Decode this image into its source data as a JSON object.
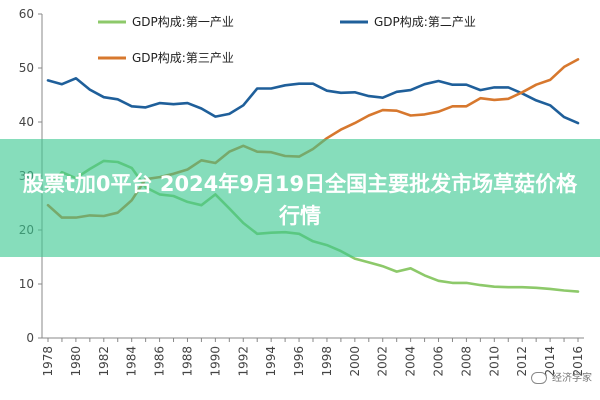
{
  "chart_data": {
    "type": "line",
    "title": "",
    "xlabel": "",
    "ylabel": "",
    "x": [
      1978,
      1979,
      1980,
      1981,
      1982,
      1983,
      1984,
      1985,
      1986,
      1987,
      1988,
      1989,
      1990,
      1991,
      1992,
      1993,
      1994,
      1995,
      1996,
      1997,
      1998,
      1999,
      2000,
      2001,
      2002,
      2003,
      2004,
      2005,
      2006,
      2007,
      2008,
      2009,
      2010,
      2011,
      2012,
      2013,
      2014,
      2015,
      2016
    ],
    "xticks": [
      "1978",
      "1980",
      "1982",
      "1984",
      "1986",
      "1988",
      "1990",
      "1992",
      "1994",
      "1996",
      "1998",
      "2000",
      "2002",
      "2004",
      "2006",
      "2008",
      "2010",
      "2012",
      "2014",
      "2016"
    ],
    "ylim": [
      0,
      60
    ],
    "yticks": [
      "0",
      "10",
      "20",
      "30",
      "40",
      "50",
      "60"
    ],
    "grid": false,
    "legend_position": "top",
    "series": [
      {
        "name": "GDP构成:第一产业",
        "color": "#8dc96a",
        "values": [
          27.7,
          30.7,
          29.6,
          31.3,
          32.8,
          32.6,
          31.5,
          27.9,
          26.6,
          26.3,
          25.2,
          24.6,
          26.6,
          24.0,
          21.3,
          19.3,
          19.5,
          19.6,
          19.3,
          17.9,
          17.2,
          16.1,
          14.7,
          14.0,
          13.3,
          12.3,
          12.9,
          11.6,
          10.6,
          10.2,
          10.2,
          9.8,
          9.5,
          9.4,
          9.4,
          9.3,
          9.1,
          8.8,
          8.6
        ]
      },
      {
        "name": "GDP构成:第二产业",
        "color": "#1f5f9a",
        "values": [
          47.7,
          47.0,
          48.1,
          46.0,
          44.6,
          44.2,
          42.9,
          42.7,
          43.5,
          43.3,
          43.5,
          42.5,
          41.0,
          41.5,
          43.1,
          46.2,
          46.2,
          46.8,
          47.1,
          47.1,
          45.8,
          45.4,
          45.5,
          44.8,
          44.5,
          45.6,
          45.9,
          47.0,
          47.6,
          46.9,
          46.9,
          45.9,
          46.4,
          46.4,
          45.3,
          44.0,
          43.1,
          40.9,
          39.8
        ]
      },
      {
        "name": "GDP构成:第三产业",
        "color": "#d7782e",
        "values": [
          24.6,
          22.3,
          22.3,
          22.7,
          22.6,
          23.2,
          25.5,
          29.4,
          29.8,
          30.4,
          31.2,
          32.9,
          32.4,
          34.5,
          35.6,
          34.5,
          34.4,
          33.7,
          33.6,
          35.0,
          37.0,
          38.6,
          39.8,
          41.2,
          42.2,
          42.1,
          41.2,
          41.4,
          41.9,
          42.9,
          42.9,
          44.4,
          44.1,
          44.3,
          45.5,
          46.9,
          47.8,
          50.2,
          51.6
        ]
      }
    ]
  },
  "banner": {
    "title": "股票t加0平台 2024年9月19日全国主要批发市场草菇价格行情"
  },
  "watermark": {
    "text": "经济学家"
  }
}
